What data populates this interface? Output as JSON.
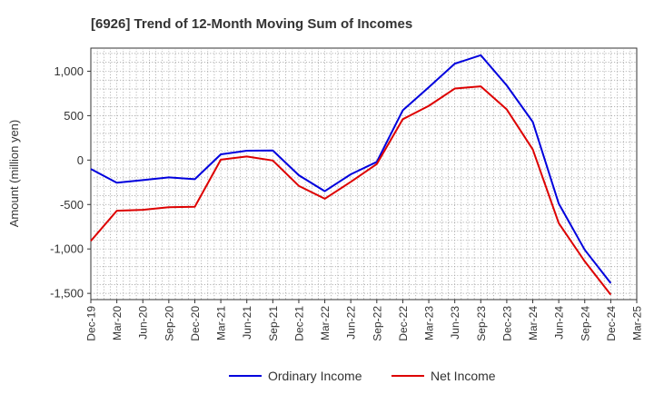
{
  "chart_data": {
    "type": "line",
    "title": "[6926]  Trend of 12-Month Moving Sum of Incomes",
    "xlabel": "",
    "ylabel": "Amount (million yen)",
    "ylim": [
      -1570,
      1260
    ],
    "yticks": [
      -1500,
      -1000,
      -500,
      0,
      500,
      1000
    ],
    "ytick_labels": [
      "-1,500",
      "-1,000",
      "-500",
      "0",
      "500",
      "1,000"
    ],
    "categories": [
      "Dec-19",
      "Mar-20",
      "Jun-20",
      "Sep-20",
      "Dec-20",
      "Mar-21",
      "Jun-21",
      "Sep-21",
      "Dec-21",
      "Mar-22",
      "Jun-22",
      "Sep-22",
      "Dec-22",
      "Mar-23",
      "Jun-23",
      "Sep-23",
      "Dec-23",
      "Mar-24",
      "Jun-24",
      "Sep-24",
      "Dec-24",
      "Mar-25"
    ],
    "grid": true,
    "legend_position": "bottom-center",
    "series": [
      {
        "name": "Ordinary Income",
        "color": "#0000dd",
        "values": [
          -100,
          -255,
          -225,
          -195,
          -215,
          65,
          105,
          108,
          -170,
          -350,
          -160,
          -20,
          560,
          820,
          1085,
          1180,
          840,
          430,
          -490,
          -1010,
          -1385,
          null
        ]
      },
      {
        "name": "Net Income",
        "color": "#dd0000",
        "values": [
          -910,
          -570,
          -560,
          -530,
          -525,
          5,
          40,
          -5,
          -290,
          -435,
          -245,
          -45,
          460,
          610,
          805,
          830,
          570,
          120,
          -710,
          -1140,
          -1515,
          null
        ]
      }
    ]
  }
}
